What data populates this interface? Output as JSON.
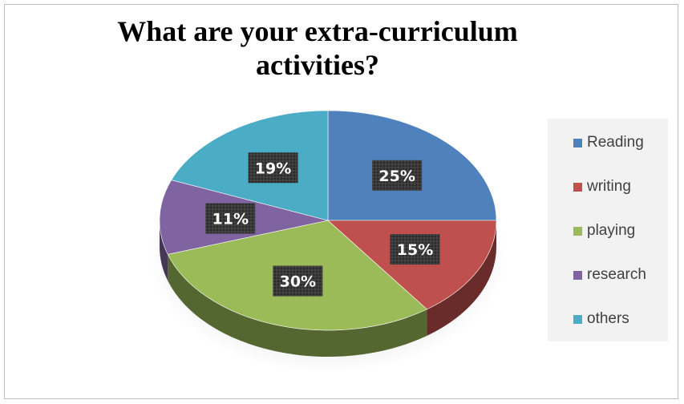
{
  "chart_data": {
    "type": "pie",
    "title": "What are your extra-curriculum activities?",
    "categories": [
      "Reading",
      "writing",
      "playing",
      "research",
      "others"
    ],
    "values": [
      25,
      15,
      30,
      11,
      19
    ],
    "value_suffix": "%",
    "legend_placement": "right",
    "style": "3d",
    "colors": [
      "#4f81bd",
      "#c0504d",
      "#9bbb59",
      "#8064a2",
      "#4bacc6"
    ]
  }
}
